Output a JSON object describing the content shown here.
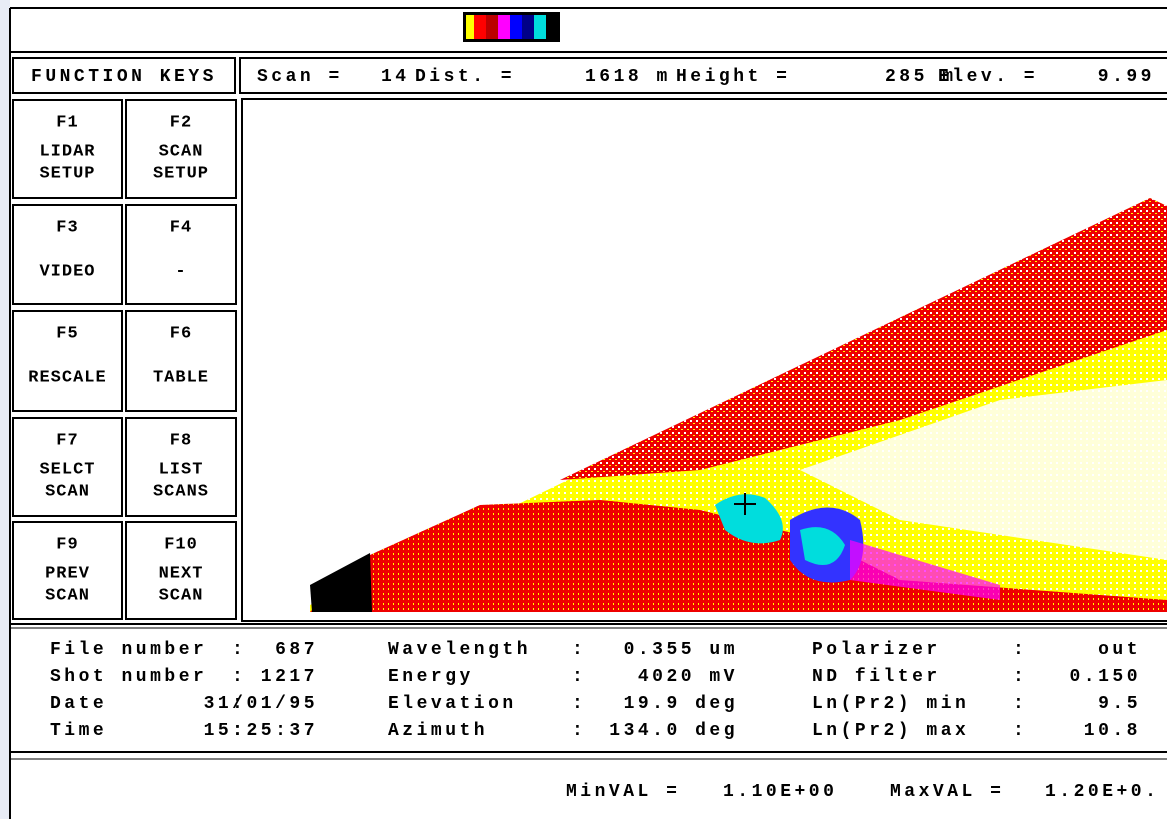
{
  "function_keys": {
    "title": "FUNCTION KEYS",
    "keys": [
      {
        "key": "F1",
        "label": [
          "LIDAR",
          "SETUP"
        ]
      },
      {
        "key": "F2",
        "label": [
          "SCAN",
          "SETUP"
        ]
      },
      {
        "key": "F3",
        "label": [
          "VIDEO"
        ]
      },
      {
        "key": "F4",
        "label": [
          "-"
        ]
      },
      {
        "key": "F5",
        "label": [
          "RESCALE"
        ]
      },
      {
        "key": "F6",
        "label": [
          "TABLE"
        ]
      },
      {
        "key": "F7",
        "label": [
          "SELCT",
          "SCAN"
        ]
      },
      {
        "key": "F8",
        "label": [
          "LIST",
          "SCANS"
        ]
      },
      {
        "key": "F9",
        "label": [
          "PREV",
          "SCAN"
        ]
      },
      {
        "key": "F10",
        "label": [
          "NEXT",
          "SCAN"
        ]
      }
    ]
  },
  "status": [
    {
      "label": "Scan =",
      "value": "14"
    },
    {
      "label": "Dist. =",
      "value": "1618 m"
    },
    {
      "label": "Height =",
      "value": "285 m"
    },
    {
      "label": "Elev. =",
      "value": "9.99"
    }
  ],
  "info": {
    "separator": ":",
    "columns": [
      [
        {
          "label": "File number",
          "value": "687"
        },
        {
          "label": "Shot number",
          "value": "1217"
        },
        {
          "label": "Date",
          "value": "31/01/95"
        },
        {
          "label": "Time",
          "value": "15:25:37"
        }
      ],
      [
        {
          "label": "Wavelength",
          "value": "0.355 um"
        },
        {
          "label": "Energy",
          "value": "4020 mV"
        },
        {
          "label": "Elevation",
          "value": "19.9 deg"
        },
        {
          "label": "Azimuth",
          "value": "134.0 deg"
        }
      ],
      [
        {
          "label": "Polarizer",
          "value": "out"
        },
        {
          "label": "ND filter",
          "value": "0.150"
        },
        {
          "label": "Ln(Pr2) min",
          "value": "9.5"
        },
        {
          "label": "Ln(Pr2) max",
          "value": "10.8"
        }
      ]
    ]
  },
  "scale": [
    {
      "label": "MinVAL =",
      "value": "1.10E+00"
    },
    {
      "label": "MaxVAL =",
      "value": "1.20E+0."
    }
  ]
}
